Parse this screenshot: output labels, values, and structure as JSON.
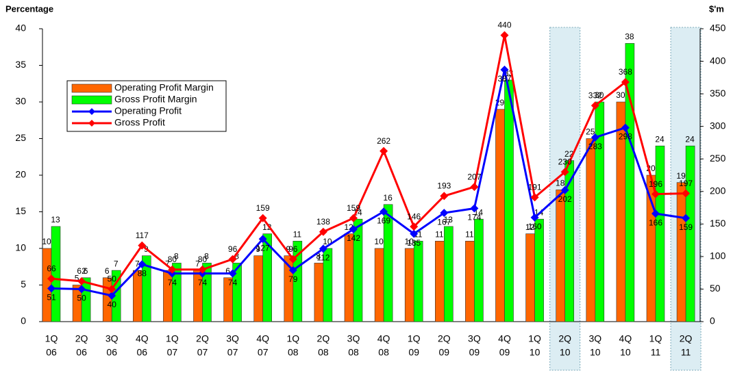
{
  "chart_data": {
    "type": "bar-line",
    "y_label": "Percentage",
    "y2_label": "$'m",
    "categories": [
      [
        "1Q",
        "06"
      ],
      [
        "2Q",
        "06"
      ],
      [
        "3Q",
        "06"
      ],
      [
        "4Q",
        "06"
      ],
      [
        "1Q",
        "07"
      ],
      [
        "2Q",
        "07"
      ],
      [
        "3Q",
        "07"
      ],
      [
        "4Q",
        "07"
      ],
      [
        "1Q",
        "08"
      ],
      [
        "2Q",
        "08"
      ],
      [
        "3Q",
        "08"
      ],
      [
        "4Q",
        "08"
      ],
      [
        "1Q",
        "09"
      ],
      [
        "2Q",
        "09"
      ],
      [
        "3Q",
        "09"
      ],
      [
        "4Q",
        "09"
      ],
      [
        "1Q",
        "10"
      ],
      [
        "2Q",
        "10"
      ],
      [
        "3Q",
        "10"
      ],
      [
        "4Q",
        "10"
      ],
      [
        "1Q",
        "11"
      ],
      [
        "2Q",
        "11"
      ]
    ],
    "series": [
      {
        "name": "Operating Profit Margin",
        "type": "bar",
        "color": "#ff6600",
        "values": [
          10,
          5,
          6,
          7,
          7,
          7,
          6,
          9,
          9,
          8,
          12,
          10,
          10,
          11,
          11,
          29,
          12,
          18,
          25,
          30,
          20,
          19
        ]
      },
      {
        "name": "Gross Profit Margin",
        "type": "bar",
        "color": "#00ff00",
        "values": [
          13,
          6,
          7,
          9,
          8,
          8,
          8,
          12,
          11,
          10,
          14,
          16,
          11,
          13,
          14,
          33,
          14,
          22,
          30,
          38,
          24,
          24
        ]
      },
      {
        "name": "Operating Profit",
        "type": "line",
        "axis": "y2",
        "color": "#0000ff",
        "values": [
          51,
          50,
          40,
          88,
          74,
          74,
          74,
          127,
          79,
          112,
          142,
          169,
          135,
          167,
          174,
          387,
          160,
          202,
          283,
          298,
          166,
          159
        ]
      },
      {
        "name": "Gross Profit",
        "type": "line",
        "axis": "y2",
        "color": "#ff0000",
        "values": [
          66,
          62,
          50,
          117,
          80,
          80,
          96,
          159,
          96,
          138,
          159,
          262,
          146,
          193,
          207,
          440,
          191,
          230,
          332,
          368,
          196,
          197
        ]
      }
    ],
    "ylim": [
      0,
      40
    ],
    "yticks": [
      0,
      5,
      10,
      15,
      20,
      25,
      30,
      35,
      40
    ],
    "y2lim": [
      0,
      450
    ],
    "y2ticks": [
      0,
      50,
      100,
      150,
      200,
      250,
      300,
      350,
      400,
      450
    ],
    "legend": "upper left"
  }
}
